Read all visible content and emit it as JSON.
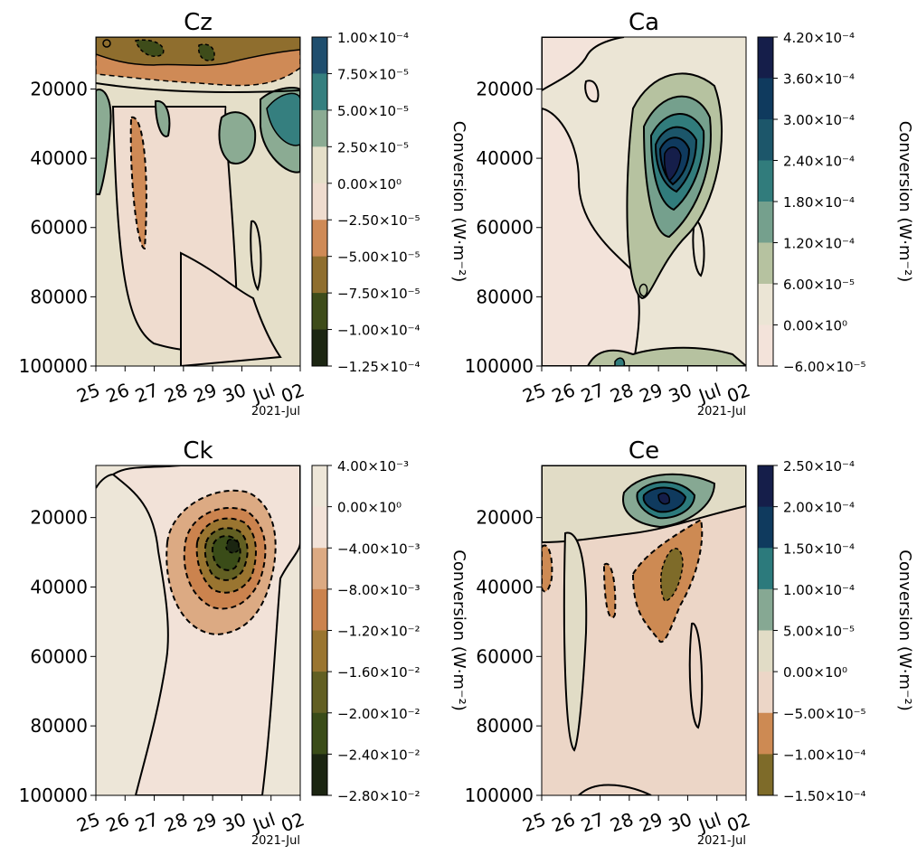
{
  "chart_data": [
    {
      "type": "heatmap",
      "title": "Cz",
      "date_label": "2021-Jul",
      "x_ticks": [
        "25",
        "26",
        "27",
        "28",
        "29",
        "30",
        "Jul",
        "02"
      ],
      "y_ticks": [
        "20000",
        "40000",
        "60000",
        "80000",
        "100000"
      ],
      "ylim": [
        100000,
        5000
      ],
      "y_inverted": true,
      "colorbar_label": "Conversion (W·m⁻²)",
      "levels": [
        "1.00×10⁻⁴",
        "7.50×10⁻⁵",
        "5.00×10⁻⁵",
        "2.50×10⁻⁵",
        "0.00×10⁰",
        "−2.50×10⁻⁵",
        "−5.00×10⁻⁵",
        "−7.50×10⁻⁵",
        "−1.00×10⁻⁴",
        "−1.25×10⁻⁴"
      ],
      "level_colors": [
        "#1f4e6e",
        "#357f7f",
        "#8bab93",
        "#e5dfc9",
        "#efdccf",
        "#cf8a56",
        "#8f6e2e",
        "#3e4c1a",
        "#1c2612"
      ]
    },
    {
      "type": "heatmap",
      "title": "Ca",
      "date_label": "2021-Jul",
      "x_ticks": [
        "25",
        "26",
        "27",
        "28",
        "29",
        "30",
        "Jul",
        "02"
      ],
      "y_ticks": [
        "20000",
        "40000",
        "60000",
        "80000",
        "100000"
      ],
      "ylim": [
        100000,
        5000
      ],
      "y_inverted": true,
      "colorbar_label": "Conversion (W·m⁻²)",
      "levels": [
        "4.20×10⁻⁴",
        "3.60×10⁻⁴",
        "3.00×10⁻⁴",
        "2.40×10⁻⁴",
        "1.80×10⁻⁴",
        "1.20×10⁻⁴",
        "6.00×10⁻⁵",
        "0.00×10⁰",
        "−6.00×10⁻⁵"
      ],
      "level_colors": [
        "#151e4a",
        "#0f3a5e",
        "#1c566a",
        "#317c7c",
        "#75a08d",
        "#b6c2a0",
        "#ebe5d5",
        "#f3e3da"
      ]
    },
    {
      "type": "heatmap",
      "title": "Ck",
      "date_label": "2021-Jul",
      "x_ticks": [
        "25",
        "26",
        "27",
        "28",
        "29",
        "30",
        "Jul",
        "02"
      ],
      "y_ticks": [
        "20000",
        "40000",
        "60000",
        "80000",
        "100000"
      ],
      "ylim": [
        100000,
        5000
      ],
      "y_inverted": true,
      "colorbar_label": "Conversion (W·m⁻²)",
      "levels": [
        "4.00×10⁻³",
        "0.00×10⁰",
        "−4.00×10⁻³",
        "−8.00×10⁻³",
        "−1.20×10⁻²",
        "−1.60×10⁻²",
        "−2.00×10⁻²",
        "−2.40×10⁻²",
        "−2.80×10⁻²"
      ],
      "level_colors": [
        "#ede6d8",
        "#f2e2d8",
        "#dcaa83",
        "#cb834e",
        "#9a7530",
        "#625f22",
        "#3a4c18",
        "#1b2511"
      ]
    },
    {
      "type": "heatmap",
      "title": "Ce",
      "date_label": "2021-Jul",
      "x_ticks": [
        "25",
        "26",
        "27",
        "28",
        "29",
        "30",
        "Jul",
        "02"
      ],
      "y_ticks": [
        "20000",
        "40000",
        "60000",
        "80000",
        "100000"
      ],
      "ylim": [
        100000,
        5000
      ],
      "y_inverted": true,
      "colorbar_label": "Conversion (W·m⁻²)",
      "levels": [
        "2.50×10⁻⁴",
        "2.00×10⁻⁴",
        "1.50×10⁻⁴",
        "1.00×10⁻⁴",
        "5.00×10⁻⁵",
        "0.00×10⁰",
        "−5.00×10⁻⁵",
        "−1.00×10⁻⁴",
        "−1.50×10⁻⁴"
      ],
      "level_colors": [
        "#151e4a",
        "#0f3a5e",
        "#2c7a7c",
        "#86a893",
        "#e1dcc6",
        "#ecd6c7",
        "#cd8a53",
        "#7e6b29"
      ]
    }
  ]
}
